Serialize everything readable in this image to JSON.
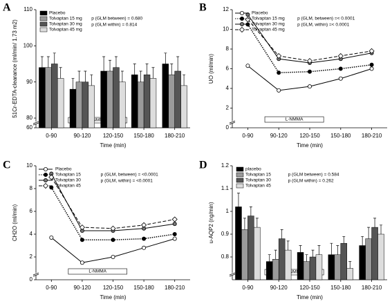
{
  "chart_data": [
    {
      "type": "bar",
      "panel_label": "A",
      "ylabel": "51Cr-EDTA-clearance (ml/min/ 1.73 m2)",
      "xlabel": "Time (min)",
      "categories": [
        "0-90",
        "90-120",
        "120-150",
        "150-180",
        "180-210"
      ],
      "series": [
        {
          "name": "Placebo",
          "color": "#000000",
          "values": [
            94,
            88,
            93,
            92,
            95
          ],
          "errors": [
            3,
            3,
            4,
            3,
            3
          ]
        },
        {
          "name": "Tolvaptan 15 mg",
          "color": "#9a9a9a",
          "values": [
            94,
            90,
            93,
            90,
            92
          ],
          "errors": [
            3,
            3,
            3,
            3,
            3
          ]
        },
        {
          "name": "Tolvaptan 30 mg",
          "color": "#555555",
          "values": [
            95,
            90,
            94,
            92,
            93
          ],
          "errors": [
            3,
            3,
            3,
            3,
            4
          ]
        },
        {
          "name": "Tolvaptan 45 mg",
          "color": "#dddddd",
          "values": [
            91,
            89,
            90,
            91,
            89
          ],
          "errors": [
            3,
            3,
            3,
            3,
            3
          ]
        }
      ],
      "ylim": [
        60,
        110
      ],
      "axis_break": 80,
      "yticks": [
        60,
        80,
        90,
        100,
        110
      ],
      "legend": "upper left",
      "annotations": [
        "p (GLM between) = 0.680",
        "p (GLM within) = 0.814"
      ],
      "intervention": "L-NMMA"
    },
    {
      "type": "line",
      "panel_label": "B",
      "ylabel": "UO (ml/min)",
      "xlabel": "Time (min)",
      "categories": [
        "0-90",
        "90-120",
        "120-150",
        "150-180",
        "180-210"
      ],
      "series": [
        {
          "name": "Placebo",
          "color": "#000000",
          "marker": "circle-open",
          "dash": "solid",
          "values": [
            6.3,
            3.8,
            4.2,
            5.0,
            6.0
          ]
        },
        {
          "name": "Tolvaptan 15 mg",
          "color": "#000000",
          "marker": "circle-filled",
          "dash": "dotted",
          "values": [
            10.5,
            5.6,
            5.7,
            6.0,
            6.4
          ]
        },
        {
          "name": "Tolvaptan 30 mg",
          "color": "#000000",
          "marker": "circle-gray",
          "dash": "solid",
          "values": [
            11.5,
            7.0,
            6.6,
            7.0,
            7.6
          ]
        },
        {
          "name": "Tolvaptan 45 mg",
          "color": "#000000",
          "marker": "diamond-open",
          "dash": "dashed",
          "values": [
            11.0,
            7.3,
            6.8,
            7.3,
            7.8
          ]
        }
      ],
      "ylim": [
        0,
        12
      ],
      "yticks": [
        0,
        2,
        4,
        6,
        8,
        10,
        12
      ],
      "legend": "upper left",
      "annotations": [
        "p (GLM, between) =< 0.0001",
        "p (GLM, within) =< 0.0001"
      ],
      "intervention": "L-NMMA"
    },
    {
      "type": "line",
      "panel_label": "C",
      "ylabel": "CH2O (ml/min)",
      "xlabel": "Time (min)",
      "categories": [
        "0-90",
        "90-120",
        "120-150",
        "150-180",
        "180-210"
      ],
      "series": [
        {
          "name": "Placebo",
          "color": "#000000",
          "marker": "circle-open",
          "dash": "solid",
          "values": [
            3.7,
            1.5,
            2.0,
            2.8,
            3.6
          ]
        },
        {
          "name": "Tolvaptan 15",
          "color": "#000000",
          "marker": "circle-filled",
          "dash": "dotted",
          "values": [
            8.1,
            3.5,
            3.5,
            3.6,
            4.0
          ]
        },
        {
          "name": "Tolvaptan 30",
          "color": "#000000",
          "marker": "circle-gray",
          "dash": "solid",
          "values": [
            9.3,
            4.3,
            4.3,
            4.5,
            4.9
          ]
        },
        {
          "name": "Tolvaptan 45",
          "color": "#000000",
          "marker": "diamond-open",
          "dash": "dashed",
          "values": [
            9.0,
            4.6,
            4.5,
            4.8,
            5.3
          ]
        }
      ],
      "ylim": [
        0,
        10
      ],
      "yticks": [
        0,
        2,
        4,
        6,
        8,
        10
      ],
      "legend": "upper left",
      "annotations": [
        "p (GLM, between) = <0.0001",
        "p (GLM, within) = <0.0001"
      ],
      "intervention": "L-NMMA"
    },
    {
      "type": "bar",
      "panel_label": "D",
      "ylabel": "u-AQP2 (ng/min)",
      "xlabel": "Time (min)",
      "categories": [
        "0-90",
        "90-120",
        "120-150",
        "150-180",
        "180-210"
      ],
      "series": [
        {
          "name": "placebo",
          "color": "#000000",
          "values": [
            1.02,
            0.78,
            0.82,
            0.81,
            0.85
          ],
          "errors": [
            0.06,
            0.03,
            0.03,
            0.05,
            0.04
          ]
        },
        {
          "name": "Tolvaptan 15",
          "color": "#9a9a9a",
          "values": [
            0.92,
            0.79,
            0.78,
            0.81,
            0.88
          ],
          "errors": [
            0.05,
            0.04,
            0.03,
            0.04,
            0.05
          ]
        },
        {
          "name": "Tolvaptan 30",
          "color": "#555555",
          "values": [
            0.98,
            0.88,
            0.8,
            0.86,
            0.93
          ],
          "errors": [
            0.04,
            0.04,
            0.03,
            0.03,
            0.04
          ]
        },
        {
          "name": "Tolvaptan 45",
          "color": "#dddddd",
          "values": [
            0.93,
            0.83,
            0.81,
            0.75,
            0.9
          ],
          "errors": [
            0.04,
            0.04,
            0.04,
            0.03,
            0.04
          ]
        }
      ],
      "ylim": [
        0.7,
        1.2
      ],
      "yticks": [
        0.8,
        0.9,
        1.0,
        1.1,
        1.2
      ],
      "legend": "upper left",
      "annotations": [
        "p (GLM between) = 0.584",
        "p (GLM within) = 0.262"
      ],
      "intervention": "L-NMMA"
    }
  ]
}
